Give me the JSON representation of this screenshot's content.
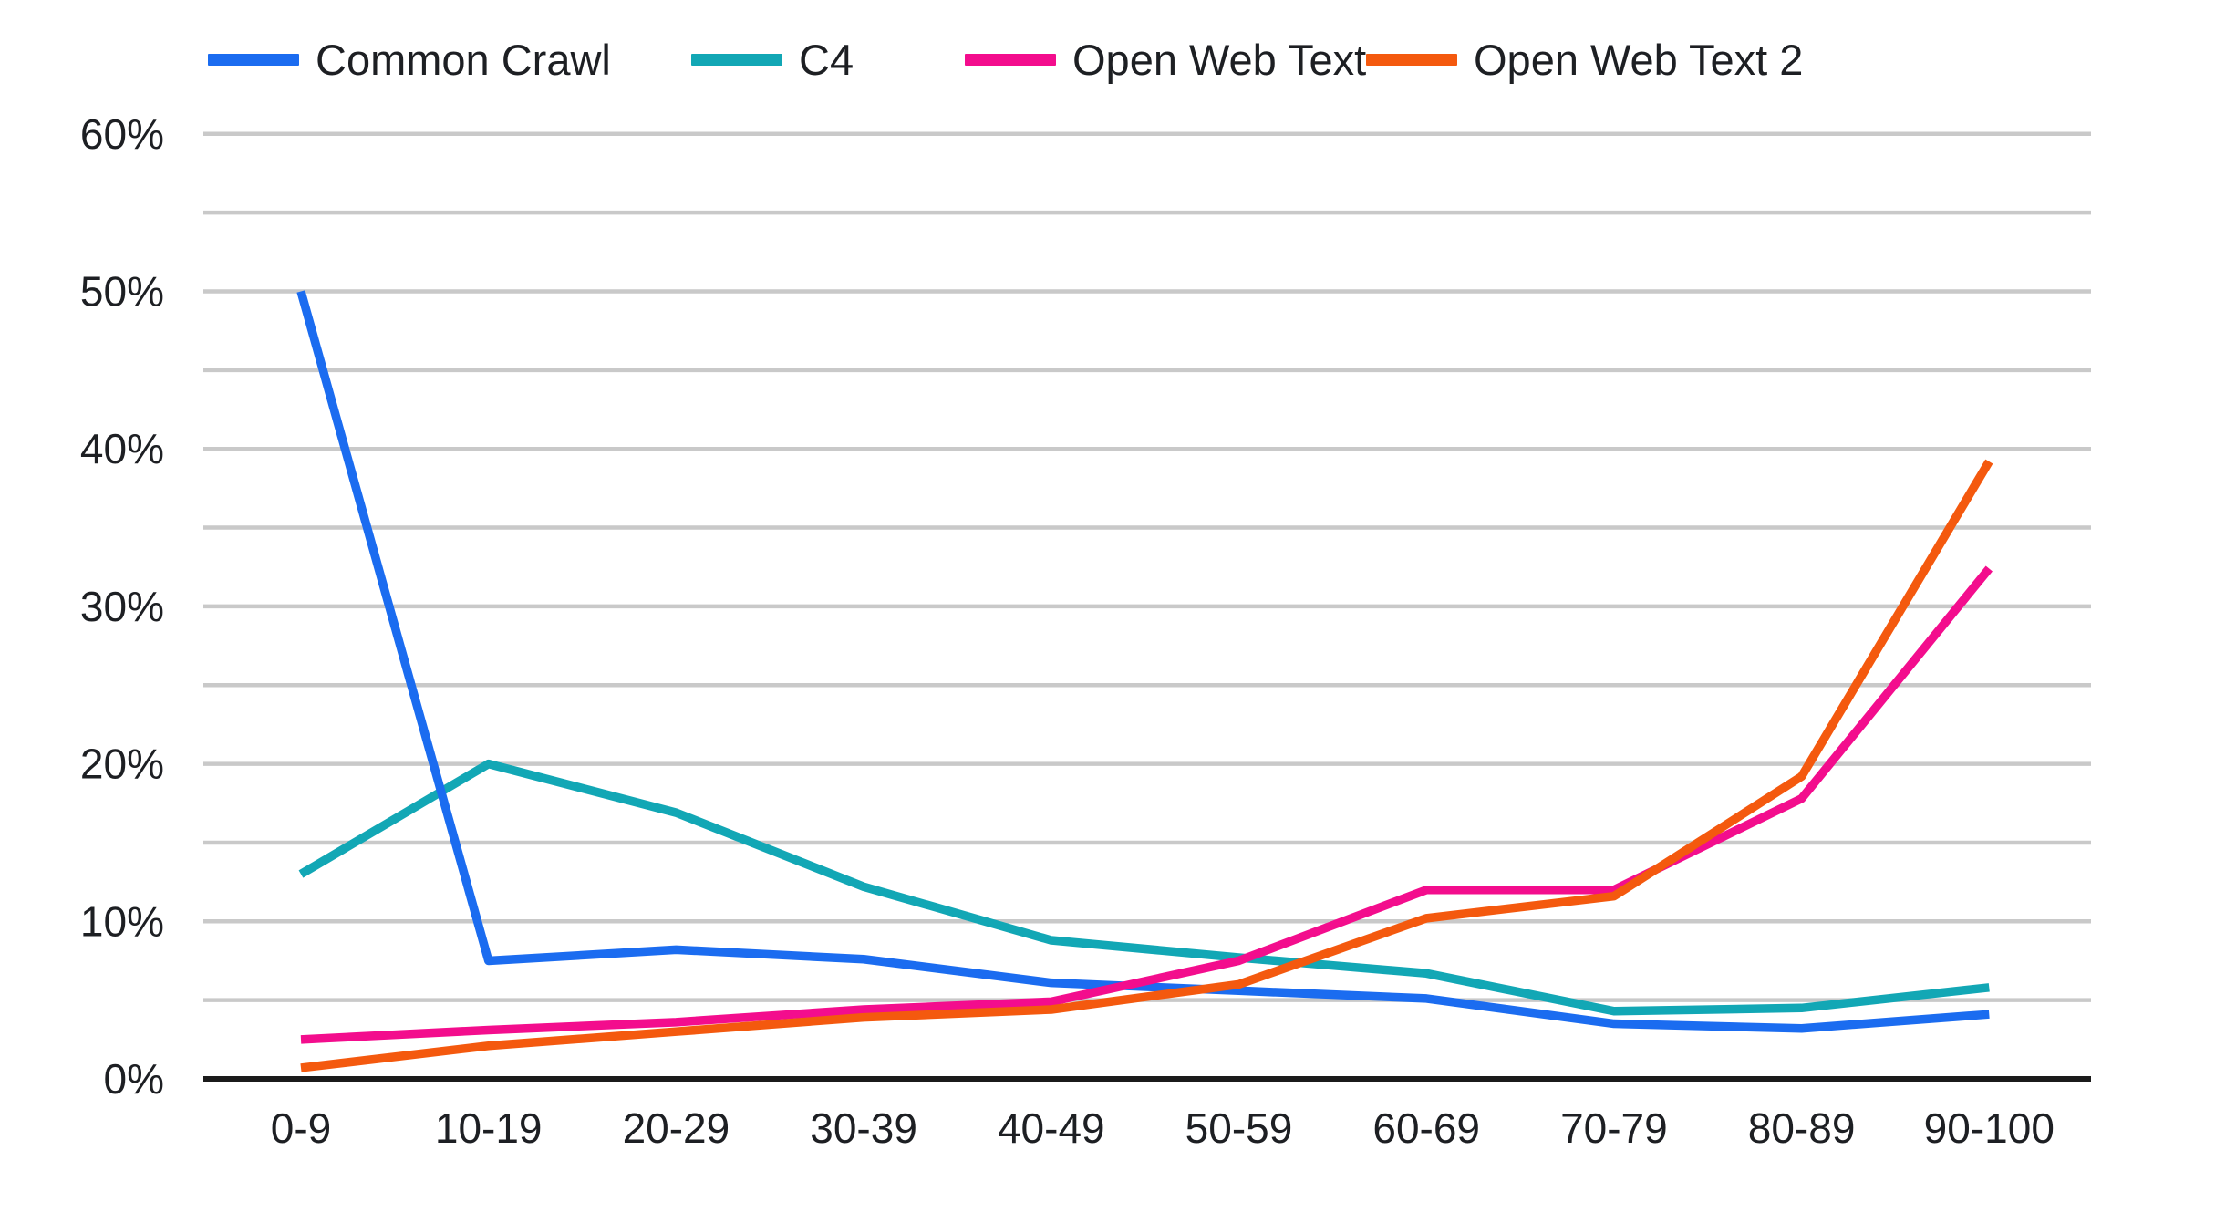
{
  "figure": {
    "background_color": "#ffffff",
    "text_color": "#1d1f23",
    "gridline_color": "#c9c9c9",
    "axis_color": "#1b1b1b"
  },
  "chart_data": {
    "type": "line",
    "title": "",
    "xlabel": "",
    "ylabel": "",
    "categories": [
      "0-9",
      "10-19",
      "20-29",
      "30-39",
      "40-49",
      "50-59",
      "60-69",
      "70-79",
      "80-89",
      "90-100"
    ],
    "series": [
      {
        "name": "Common Crawl",
        "color": "#1b6cf0",
        "values": [
          50,
          7.5,
          8.2,
          7.6,
          6.1,
          5.6,
          5.1,
          3.5,
          3.2,
          4.1
        ]
      },
      {
        "name": "C4",
        "color": "#12a7b5",
        "values": [
          13,
          20,
          16.9,
          12.2,
          8.8,
          7.7,
          6.7,
          4.3,
          4.5,
          5.8
        ]
      },
      {
        "name": "Open Web Text",
        "color": "#f30d8d",
        "values": [
          2.5,
          3.1,
          3.6,
          4.4,
          4.9,
          7.5,
          12,
          12,
          17.8,
          32.4
        ]
      },
      {
        "name": "Open Web Text 2",
        "color": "#f4590e",
        "values": [
          0.7,
          2.1,
          3.0,
          3.9,
          4.4,
          6.0,
          10.2,
          11.6,
          19.2,
          39.2
        ]
      }
    ],
    "ylim": [
      0,
      60
    ],
    "y_tick_step": 10,
    "grid_step": 5,
    "y_tick_labels": [
      "0%",
      "10%",
      "20%",
      "30%",
      "40%",
      "50%",
      "60%"
    ],
    "grid": true,
    "legend_position": "top",
    "draw_order": [
      1,
      0,
      2,
      3
    ]
  }
}
